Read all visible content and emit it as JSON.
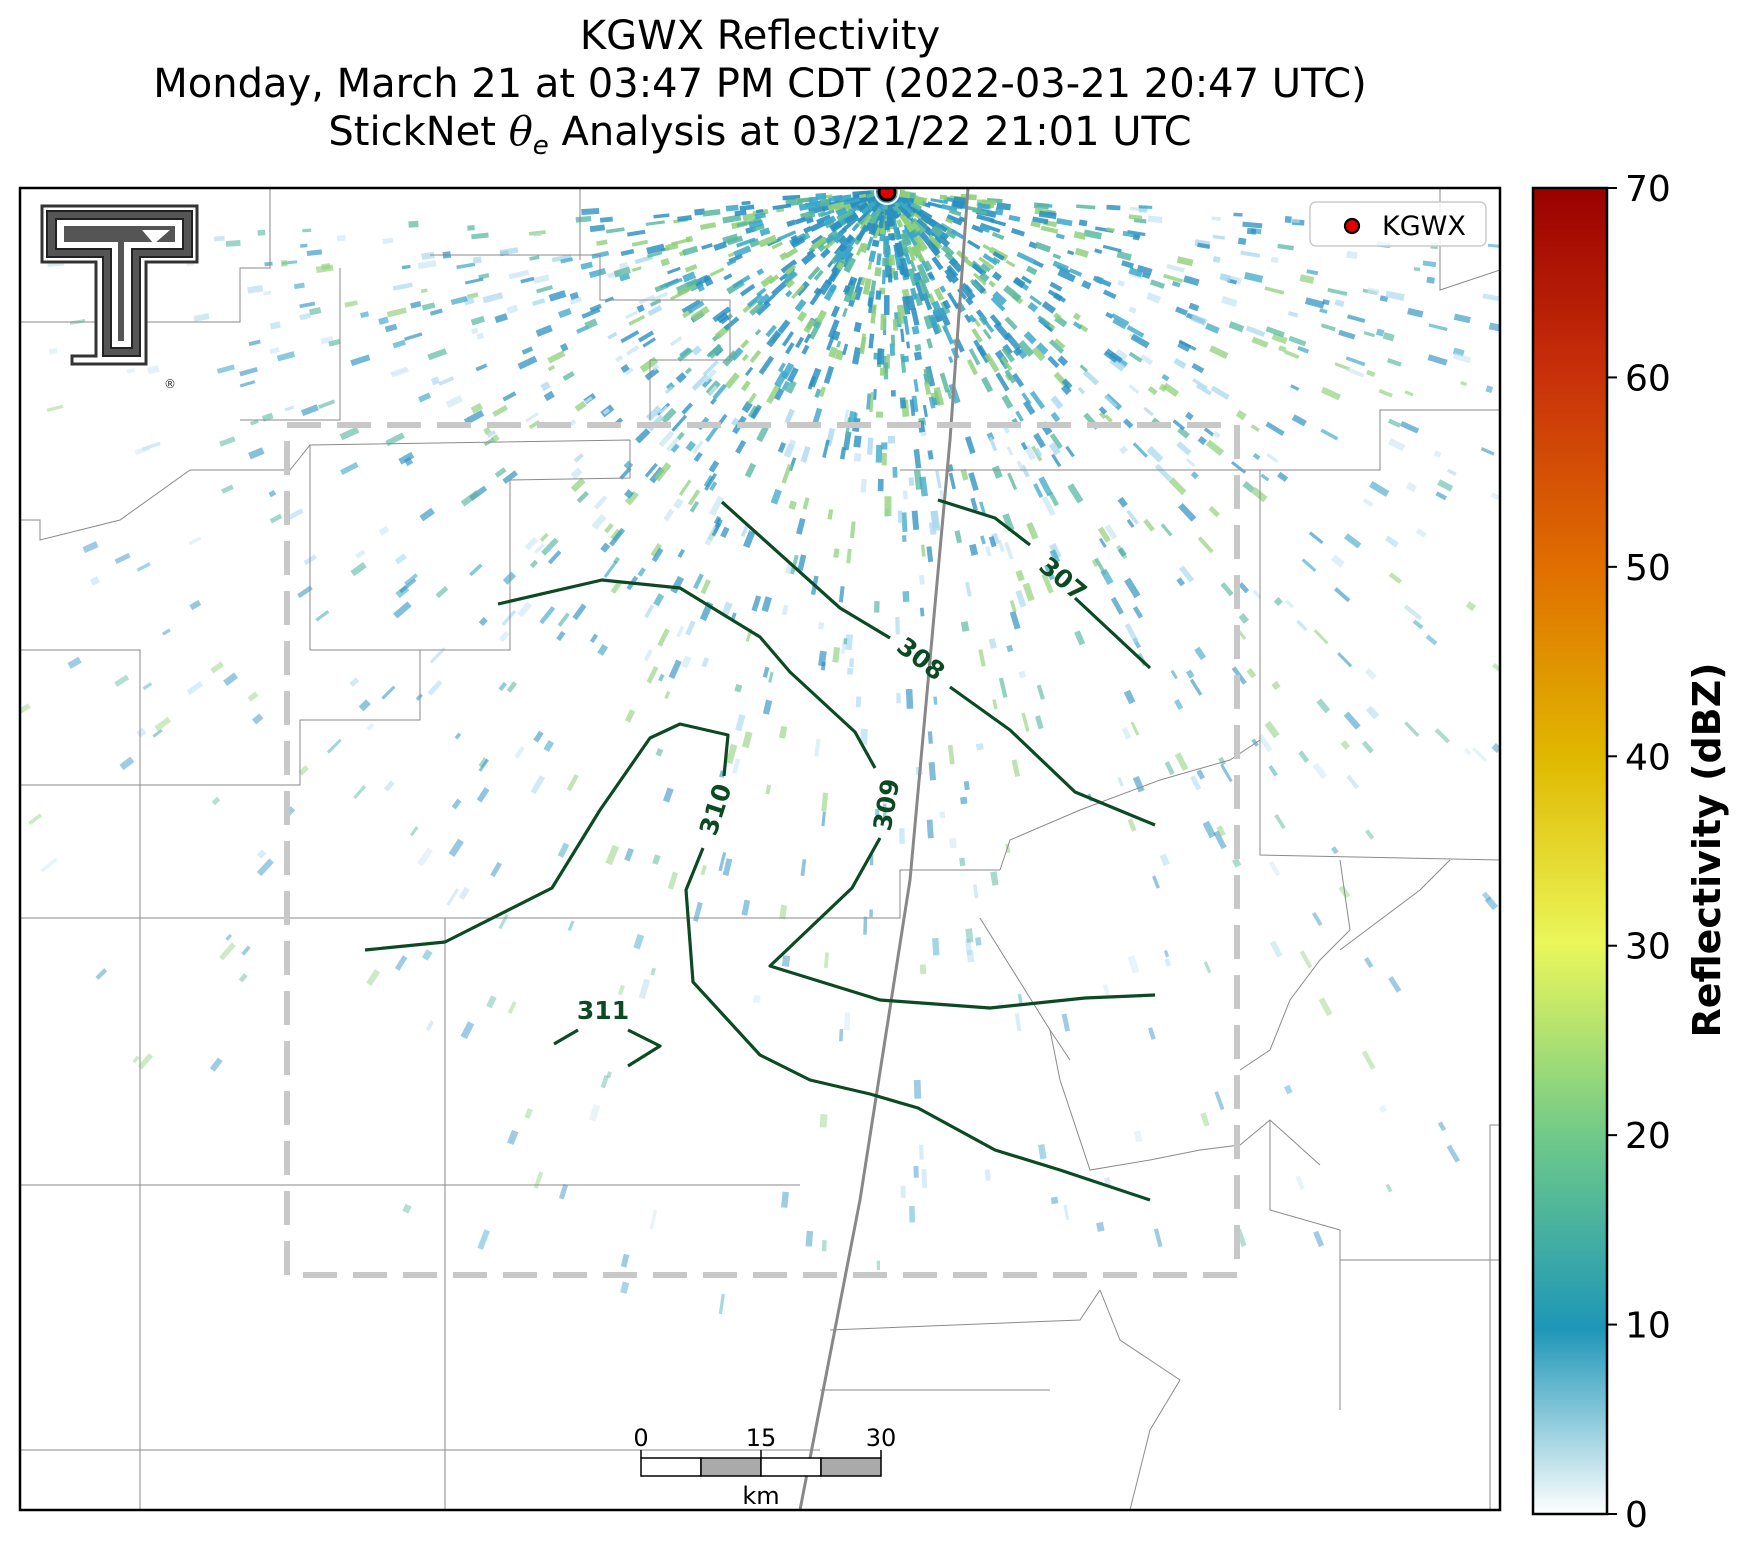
{
  "title": {
    "line1": "KGWX Reflectivity",
    "line2": "Monday, March 21 at 03:47 PM CDT (2022-03-21 20:47 UTC)",
    "line3_prefix": "StickNet ",
    "line3_symbol": "θ",
    "line3_subscript": "e",
    "line3_suffix": " Analysis at 03/21/22 21:01 UTC"
  },
  "legend": {
    "label": "KGWX",
    "marker_color": "#e00000"
  },
  "logo": {
    "name": "Texas Tech Double T",
    "mark": "®"
  },
  "contours": {
    "color": "#0b4a22",
    "labels": [
      "307",
      "308",
      "309",
      "310",
      "311"
    ]
  },
  "scalebar": {
    "ticks": [
      "0",
      "15",
      "30"
    ],
    "unit": "km"
  },
  "colorbar": {
    "label": "Reflectivity (dBZ)",
    "ticks": [
      "0",
      "10",
      "20",
      "30",
      "40",
      "50",
      "60",
      "70"
    ],
    "range": [
      0,
      70
    ],
    "colors": [
      "#ffffff",
      "#1e96b8",
      "#6cc88a",
      "#eaf75a",
      "#e0b800",
      "#e07000",
      "#c8300a",
      "#9a0000"
    ]
  },
  "colors": {
    "analysis_box": "#c8c8c8",
    "radar_echo": "#2a8fc0",
    "county_lines": "#8a8a8a",
    "highway": "#888888"
  }
}
